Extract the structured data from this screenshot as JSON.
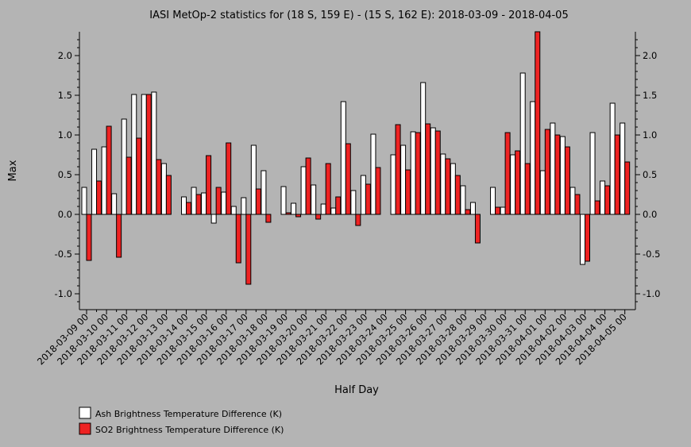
{
  "chart_data": {
    "type": "bar",
    "title": "IASI MetOp-2 statistics for (18 S, 159 E) - (15 S, 162 E): 2018-03-09 - 2018-04-05",
    "xlabel": "Half Day",
    "ylabel": "Max",
    "ylim": [
      -1.2,
      2.3
    ],
    "yticks": [
      "-1.0",
      "-0.5",
      "0.0",
      "0.5",
      "1.0",
      "1.5",
      "2.0"
    ],
    "tick_labels": [
      "2018-03-09 00",
      "2018-03-10 00",
      "2018-03-11 00",
      "2018-03-12 00",
      "2018-03-13 00",
      "2018-03-14 00",
      "2018-03-15 00",
      "2018-03-16 00",
      "2018-03-17 00",
      "2018-03-18 00",
      "2018-03-19 00",
      "2018-03-20 00",
      "2018-03-21 00",
      "2018-03-22 00",
      "2018-03-23 00",
      "2018-03-24 00",
      "2018-03-25 00",
      "2018-03-26 00",
      "2018-03-27 00",
      "2018-03-28 00",
      "2018-03-29 00",
      "2018-03-30 00",
      "2018-03-31 00",
      "2018-04-01 00",
      "2018-04-02 00",
      "2018-04-03 00",
      "2018-04-04 00",
      "2018-04-05 00"
    ],
    "categories": [
      "2018-03-09 00",
      "2018-03-09 12",
      "2018-03-10 00",
      "2018-03-10 12",
      "2018-03-11 00",
      "2018-03-11 12",
      "2018-03-12 00",
      "2018-03-12 12",
      "2018-03-13 00",
      "2018-03-13 12",
      "2018-03-14 00",
      "2018-03-14 12",
      "2018-03-15 00",
      "2018-03-15 12",
      "2018-03-16 00",
      "2018-03-16 12",
      "2018-03-17 00",
      "2018-03-17 12",
      "2018-03-18 00",
      "2018-03-18 12",
      "2018-03-19 00",
      "2018-03-19 12",
      "2018-03-20 00",
      "2018-03-20 12",
      "2018-03-21 00",
      "2018-03-21 12",
      "2018-03-22 00",
      "2018-03-22 12",
      "2018-03-23 00",
      "2018-03-23 12",
      "2018-03-24 00",
      "2018-03-24 12",
      "2018-03-25 00",
      "2018-03-25 12",
      "2018-03-26 00",
      "2018-03-26 12",
      "2018-03-27 00",
      "2018-03-27 12",
      "2018-03-28 00",
      "2018-03-28 12",
      "2018-03-29 00",
      "2018-03-29 12",
      "2018-03-30 00",
      "2018-03-30 12",
      "2018-03-31 00",
      "2018-03-31 12",
      "2018-04-01 00",
      "2018-04-01 12",
      "2018-04-02 00",
      "2018-04-02 12",
      "2018-04-03 00",
      "2018-04-03 12",
      "2018-04-04 00",
      "2018-04-04 12",
      "2018-04-05 00"
    ],
    "series": [
      {
        "name": "Ash Brightness Temperature Difference (K)",
        "color": "#ffffff",
        "values": [
          0.34,
          0.82,
          0.85,
          0.26,
          1.2,
          1.51,
          1.51,
          1.54,
          0.64,
          null,
          0.22,
          0.34,
          0.27,
          -0.11,
          0.28,
          0.1,
          0.21,
          0.87,
          0.55,
          null,
          0.35,
          0.14,
          0.6,
          0.37,
          0.13,
          0.08,
          1.42,
          0.3,
          0.49,
          1.01,
          null,
          0.75,
          0.87,
          1.04,
          1.66,
          1.09,
          0.76,
          0.64,
          0.36,
          0.15,
          null,
          0.34,
          0.09,
          0.75,
          1.78,
          1.42,
          0.55,
          1.15,
          0.98,
          0.34,
          -0.63,
          1.03,
          0.42,
          1.4,
          1.15
        ]
      },
      {
        "name": "SO2 Brightness Temperature Difference (K)",
        "color": "#ee2222",
        "values": [
          -0.58,
          0.42,
          1.11,
          -0.54,
          0.72,
          0.96,
          1.51,
          0.69,
          0.49,
          null,
          0.15,
          0.25,
          0.74,
          0.34,
          0.9,
          -0.61,
          -0.88,
          0.32,
          -0.1,
          null,
          0.02,
          -0.03,
          0.71,
          -0.06,
          0.64,
          0.22,
          0.89,
          -0.14,
          0.38,
          0.59,
          null,
          1.13,
          0.56,
          1.03,
          1.14,
          1.05,
          0.7,
          0.49,
          0.06,
          -0.36,
          null,
          0.09,
          1.03,
          0.8,
          0.64,
          2.3,
          1.07,
          1.0,
          0.85,
          0.25,
          -0.59,
          0.17,
          0.36,
          1.0,
          0.66
        ]
      }
    ],
    "legend_position": "bottom-left",
    "grid": false
  }
}
